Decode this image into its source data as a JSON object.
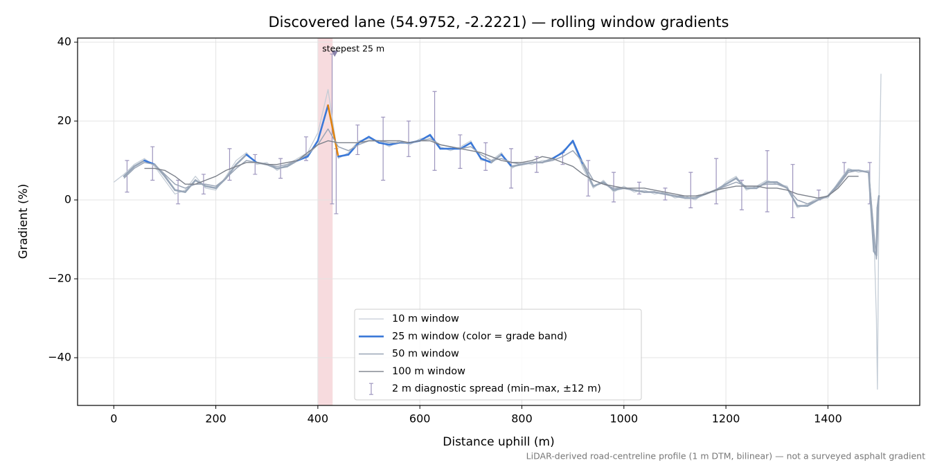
{
  "chart_data": {
    "type": "line",
    "title": "Discovered lane (54.9752, -2.2221) — rolling window gradients",
    "xlabel": "Distance uphill (m)",
    "ylabel": "Gradient (%)",
    "footnote": "LiDAR-derived road-centreline profile (1 m DTM, bilinear) — not a surveyed asphalt gradient",
    "xlim": [
      -71,
      1580
    ],
    "ylim": [
      -52.1,
      41.05
    ],
    "xticks": [
      0,
      200,
      400,
      600,
      800,
      1000,
      1200,
      1400
    ],
    "yticks": [
      {
        "value": -40,
        "label": "−40"
      },
      {
        "value": -20,
        "label": "−20"
      },
      0,
      20,
      40
    ],
    "grid": true,
    "legend": "lower center",
    "x": [
      0,
      20,
      40,
      60,
      80,
      100,
      120,
      140,
      160,
      180,
      200,
      220,
      240,
      260,
      280,
      300,
      320,
      340,
      360,
      380,
      400,
      420,
      440,
      460,
      480,
      500,
      520,
      540,
      560,
      580,
      600,
      620,
      640,
      660,
      680,
      700,
      720,
      740,
      760,
      780,
      800,
      820,
      840,
      860,
      880,
      900,
      920,
      940,
      960,
      980,
      1000,
      1020,
      1040,
      1060,
      1080,
      1100,
      1120,
      1140,
      1160,
      1180,
      1200,
      1220,
      1240,
      1260,
      1280,
      1300,
      1320,
      1340,
      1360,
      1380,
      1400,
      1420,
      1440,
      1460,
      1480,
      1490,
      1495,
      1497,
      1500,
      1504
    ],
    "series": [
      {
        "name": "10 m window",
        "color": "#c3ccd6",
        "width": 1.3,
        "values": [
          4.5,
          6.5,
          9,
          10.5,
          8.5,
          5,
          1.5,
          2.5,
          6,
          3,
          2.5,
          6,
          10,
          12,
          9,
          9.5,
          7.5,
          9,
          10.5,
          12,
          17,
          28,
          10.5,
          12,
          15,
          15.5,
          15,
          13.5,
          15,
          14,
          15.5,
          16,
          13.5,
          12.5,
          13.5,
          15,
          10,
          10,
          12,
          8,
          9.5,
          9,
          10,
          10,
          12.5,
          14.5,
          8,
          3,
          5,
          2,
          3.5,
          2,
          2.5,
          1.5,
          2,
          0.5,
          1,
          0,
          2,
          2,
          4.5,
          6,
          2.5,
          3.5,
          5,
          4,
          3.5,
          -2,
          -1,
          0.5,
          0.5,
          4.5,
          8,
          7,
          7.5,
          -8,
          -30,
          -48,
          0,
          32
        ]
      },
      {
        "name": "25 m window (color = grade band)",
        "color": "#3a78d8",
        "width": 2.6,
        "band_edges": [
          10,
          20
        ],
        "band_colors": [
          "#98a6b8",
          "#3a78d8",
          "#e0820e"
        ],
        "values": [
          null,
          6,
          8.5,
          10,
          9,
          6,
          2.5,
          2,
          5,
          3.5,
          3,
          5.5,
          9,
          11.5,
          9.5,
          9,
          8,
          8.5,
          10,
          11,
          15,
          24,
          11,
          11.5,
          14.5,
          16,
          14.5,
          14,
          14.5,
          14.5,
          15,
          16.5,
          13,
          13,
          13,
          14.5,
          10.5,
          9.5,
          11.5,
          8.5,
          9,
          9.5,
          9.5,
          10.5,
          12,
          15,
          9,
          3.5,
          4.5,
          2.5,
          3,
          2.5,
          2,
          2,
          1.5,
          1,
          0.5,
          0.5,
          1.5,
          2.5,
          4,
          5.5,
          3,
          3,
          4.5,
          4.5,
          3,
          -1.5,
          -1.5,
          0,
          1,
          4,
          7.5,
          7.5,
          7,
          -13,
          -14,
          -2,
          1,
          null
        ]
      },
      {
        "name": "50 m window",
        "color": "#9aa5b6",
        "width": 1.5,
        "values": [
          null,
          5.5,
          8,
          9.5,
          9,
          6.5,
          4,
          3,
          4,
          4,
          3.5,
          5.5,
          8,
          10,
          9.5,
          9,
          8.5,
          9,
          10,
          11.5,
          14,
          18,
          13.5,
          12.5,
          14,
          15,
          15,
          14.5,
          14.5,
          14.5,
          15,
          15.5,
          14,
          13.5,
          13,
          13.5,
          11.5,
          10,
          10.5,
          9.5,
          9,
          9.5,
          9.5,
          10,
          11,
          12.5,
          9.5,
          5,
          4,
          3,
          3,
          2.5,
          2,
          2,
          1.5,
          1,
          1,
          1,
          1.5,
          2.5,
          3.5,
          4.5,
          3.5,
          3.5,
          4,
          4,
          3,
          0,
          -1,
          0,
          1,
          3.5,
          7,
          7.5,
          7,
          -8,
          -15,
          -10,
          1,
          null
        ]
      },
      {
        "name": "100 m window",
        "color": "#7b808a",
        "width": 1.4,
        "values": [
          null,
          null,
          null,
          8,
          8,
          7.5,
          6,
          4,
          4,
          5,
          6,
          7.5,
          8.5,
          9.5,
          9.5,
          9,
          9,
          9.5,
          10,
          12,
          14,
          15,
          14.5,
          14.5,
          14.5,
          15,
          15,
          15,
          15,
          14.5,
          15,
          15,
          14,
          13.5,
          13,
          12.5,
          12,
          11,
          10,
          9.5,
          9.5,
          10,
          11,
          10.5,
          9.5,
          8.5,
          6.5,
          5,
          4,
          3.5,
          3,
          3,
          3,
          2.5,
          2,
          1.5,
          1,
          1,
          1.5,
          2.5,
          3,
          3.5,
          3.5,
          3.5,
          3,
          3,
          2.5,
          1.5,
          1,
          0.5,
          1,
          3,
          6,
          6,
          null,
          null,
          null,
          null,
          null,
          null
        ]
      }
    ],
    "spread": {
      "name": "2 m diagnostic spread (min–max, ±12 m)",
      "color": "#9c94bd",
      "x": [
        26,
        76,
        126,
        176,
        227,
        277,
        327,
        377,
        428,
        436,
        478,
        528,
        578,
        629,
        679,
        729,
        779,
        829,
        880,
        930,
        980,
        1030,
        1081,
        1131,
        1181,
        1231,
        1281,
        1331,
        1382,
        1432,
        1482
      ],
      "low": [
        2,
        5,
        -1,
        1.5,
        5,
        6.5,
        5.5,
        10,
        -1,
        -3.5,
        11.5,
        5,
        11,
        7.5,
        8,
        7.5,
        3,
        7,
        9,
        1,
        -0.5,
        1.5,
        0,
        -2,
        -1,
        -2.5,
        -3,
        -4.5,
        0,
        6,
        -1
      ],
      "high": [
        10,
        13.5,
        5,
        6.5,
        13,
        11.5,
        10.5,
        16,
        37,
        13,
        19,
        21,
        20,
        27.5,
        16.5,
        14.5,
        13,
        11,
        12,
        10,
        7,
        4.5,
        3,
        7,
        10.5,
        5,
        12.5,
        9,
        2.5,
        9.5,
        9.5
      ]
    },
    "annotation": {
      "text": "steepest 25 m",
      "color": "#c0282d",
      "span": [
        400.5,
        429
      ],
      "span_color": "#f0b8bd",
      "marker": {
        "x": 433,
        "y": 37
      }
    }
  }
}
